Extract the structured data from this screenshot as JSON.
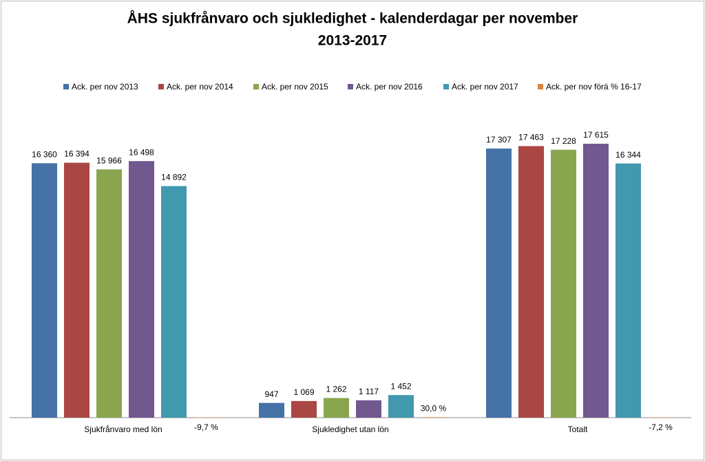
{
  "chart_data": {
    "type": "bar",
    "title": [
      "ÅHS sjukfrånvaro och sjukledighet - kalenderdagar per november",
      "2013-2017"
    ],
    "categories": [
      "Sjukfrånvaro med lön",
      "Sjukledighet utan lön",
      "Totalt"
    ],
    "series": [
      {
        "name": "Ack. per nov 2013",
        "color": "#4572a7",
        "values": [
          16360,
          947,
          17307
        ],
        "value_labels": [
          "16 360",
          "947",
          "17 307"
        ]
      },
      {
        "name": "Ack. per nov 2014",
        "color": "#aa4643",
        "values": [
          16394,
          1069,
          17463
        ],
        "value_labels": [
          "16 394",
          "1 069",
          "17 463"
        ]
      },
      {
        "name": "Ack. per nov 2015",
        "color": "#89a54e",
        "values": [
          15966,
          1262,
          17228
        ],
        "value_labels": [
          "15 966",
          "1 262",
          "17 228"
        ]
      },
      {
        "name": "Ack. per nov 2016",
        "color": "#71588f",
        "values": [
          16498,
          1117,
          17615
        ],
        "value_labels": [
          "16 498",
          "1 117",
          "17 615"
        ]
      },
      {
        "name": "Ack. per nov 2017",
        "color": "#4198af",
        "values": [
          14892,
          1452,
          16344
        ],
        "value_labels": [
          "14 892",
          "1 452",
          "16 344"
        ]
      },
      {
        "name": "Ack. per nov förä % 16-17",
        "color": "#db843d",
        "values": [
          -9.7,
          30.0,
          -7.2
        ],
        "value_labels": [
          "-9,7 %",
          "30,0 %",
          "-7,2 %"
        ]
      }
    ],
    "ylim": [
      0,
      20000
    ],
    "legend": "top"
  }
}
